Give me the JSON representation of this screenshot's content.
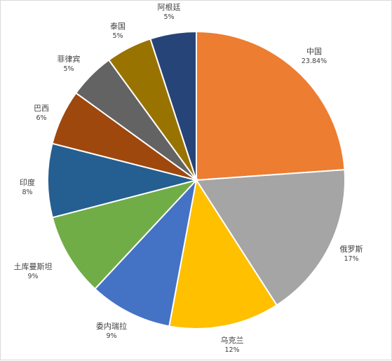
{
  "chart_data": {
    "type": "pie",
    "title": "",
    "start_angle_deg": 0,
    "direction": "clockwise",
    "slices": [
      {
        "label": "中国",
        "value": 23.84,
        "display": "23.84%",
        "color": "#ED7D31",
        "label_pos": "outside-right"
      },
      {
        "label": "俄罗斯",
        "value": 17,
        "display": "17%",
        "color": "#A5A5A5",
        "label_pos": "outside-right"
      },
      {
        "label": "乌克兰",
        "value": 12,
        "display": "12%",
        "color": "#FFC000",
        "label_pos": "outside-bottom"
      },
      {
        "label": "委内瑞拉",
        "value": 9,
        "display": "9%",
        "color": "#4472C4",
        "label_pos": "outside-bottom"
      },
      {
        "label": "土库曼斯坦",
        "value": 9,
        "display": "9%",
        "color": "#70AD47",
        "label_pos": "outside-left"
      },
      {
        "label": "印度",
        "value": 8,
        "display": "8%",
        "color": "#255E91",
        "label_pos": "outside-left"
      },
      {
        "label": "巴西",
        "value": 6,
        "display": "6%",
        "color": "#9E480E",
        "label_pos": "outside-left"
      },
      {
        "label": "菲律宾",
        "value": 5,
        "display": "5%",
        "color": "#636363",
        "label_pos": "outside-left"
      },
      {
        "label": "泰国",
        "value": 5,
        "display": "5%",
        "color": "#997300",
        "label_pos": "outside-top"
      },
      {
        "label": "阿根廷",
        "value": 5,
        "display": "5%",
        "color": "#264478",
        "label_pos": "outside-top"
      }
    ]
  }
}
